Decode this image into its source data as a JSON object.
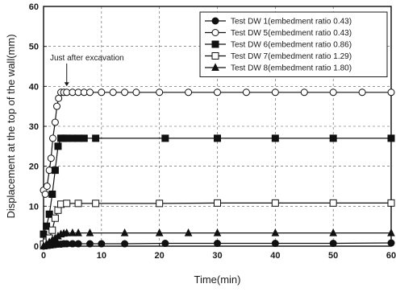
{
  "chart_data": {
    "type": "line",
    "xlabel": "Time(min)",
    "ylabel": "Displacement at the top of the wall(mm)",
    "xlim": [
      0,
      60
    ],
    "ylim": [
      0,
      60
    ],
    "xticks": [
      0,
      10,
      20,
      30,
      40,
      50,
      60
    ],
    "yticks": [
      0,
      10,
      20,
      30,
      40,
      50,
      60
    ],
    "grid": true,
    "legend_position": "top-right",
    "annotation": {
      "text": "Just after excavation",
      "x": 4,
      "y": 39
    },
    "series": [
      {
        "name": "Test DW 1(embedment ratio  0.43)",
        "marker": "filled-circle",
        "points": [
          [
            0,
            0
          ],
          [
            0.5,
            0.1
          ],
          [
            1,
            0.2
          ],
          [
            1.5,
            0.3
          ],
          [
            2,
            0.4
          ],
          [
            2.5,
            0.5
          ],
          [
            3,
            0.5
          ],
          [
            3.5,
            0.6
          ],
          [
            4,
            0.6
          ],
          [
            5,
            0.6
          ],
          [
            6,
            0.6
          ],
          [
            8,
            0.6
          ],
          [
            10,
            0.6
          ],
          [
            14,
            0.6
          ],
          [
            21,
            0.7
          ],
          [
            30,
            0.7
          ],
          [
            40,
            0.7
          ],
          [
            50,
            0.7
          ],
          [
            60,
            0.8
          ]
        ]
      },
      {
        "name": "Test DW 5(embedment ratio  0.43)",
        "marker": "open-circle",
        "points": [
          [
            0,
            14
          ],
          [
            0.3,
            13
          ],
          [
            0.6,
            15
          ],
          [
            1,
            19
          ],
          [
            1.3,
            22
          ],
          [
            1.6,
            27
          ],
          [
            2,
            31
          ],
          [
            2.3,
            35
          ],
          [
            2.6,
            37
          ],
          [
            3,
            38.5
          ],
          [
            3.5,
            38.5
          ],
          [
            4,
            38.5
          ],
          [
            5,
            38.5
          ],
          [
            6,
            38.5
          ],
          [
            7,
            38.5
          ],
          [
            8,
            38.5
          ],
          [
            10,
            38.5
          ],
          [
            12,
            38.5
          ],
          [
            14,
            38.5
          ],
          [
            16,
            38.5
          ],
          [
            20,
            38.5
          ],
          [
            25,
            38.5
          ],
          [
            30,
            38.5
          ],
          [
            35,
            38.5
          ],
          [
            40,
            38.5
          ],
          [
            45,
            38.5
          ],
          [
            50,
            38.5
          ],
          [
            55,
            38.5
          ],
          [
            60,
            38.5
          ]
        ]
      },
      {
        "name": "Test DW 6(embedment ratio  0.86)",
        "marker": "filled-square",
        "points": [
          [
            0,
            3
          ],
          [
            0.5,
            5
          ],
          [
            1,
            8
          ],
          [
            1.5,
            13
          ],
          [
            2,
            19
          ],
          [
            2.5,
            25
          ],
          [
            3,
            27
          ],
          [
            3.5,
            27
          ],
          [
            4,
            27
          ],
          [
            5,
            27
          ],
          [
            6,
            27
          ],
          [
            7,
            27
          ],
          [
            9,
            27
          ],
          [
            21,
            27
          ],
          [
            30,
            27
          ],
          [
            40,
            27
          ],
          [
            50,
            27
          ],
          [
            60,
            27
          ]
        ]
      },
      {
        "name": "Test DW 7(embedment ratio  1.29)",
        "marker": "open-square",
        "points": [
          [
            0,
            0.5
          ],
          [
            0.5,
            1
          ],
          [
            1,
            2
          ],
          [
            1.5,
            4
          ],
          [
            2,
            7
          ],
          [
            2.5,
            9
          ],
          [
            3,
            10.5
          ],
          [
            4,
            10.7
          ],
          [
            6,
            10.7
          ],
          [
            9,
            10.7
          ],
          [
            20,
            10.7
          ],
          [
            30,
            10.8
          ],
          [
            40,
            10.8
          ],
          [
            50,
            10.8
          ],
          [
            60,
            10.8
          ]
        ]
      },
      {
        "name": "Test DW 8(embedment ratio  1.80)",
        "marker": "filled-triangle",
        "points": [
          [
            0,
            0
          ],
          [
            0.5,
            0.5
          ],
          [
            1,
            1
          ],
          [
            1.5,
            1.5
          ],
          [
            2,
            2
          ],
          [
            2.5,
            2.5
          ],
          [
            3,
            3
          ],
          [
            3.5,
            3.2
          ],
          [
            4,
            3.3
          ],
          [
            5,
            3.3
          ],
          [
            6,
            3.3
          ],
          [
            8,
            3.3
          ],
          [
            14,
            3.3
          ],
          [
            20,
            3.3
          ],
          [
            25,
            3.3
          ],
          [
            30,
            3.3
          ],
          [
            40,
            3.3
          ],
          [
            50,
            3.3
          ],
          [
            60,
            3.3
          ]
        ]
      }
    ]
  }
}
